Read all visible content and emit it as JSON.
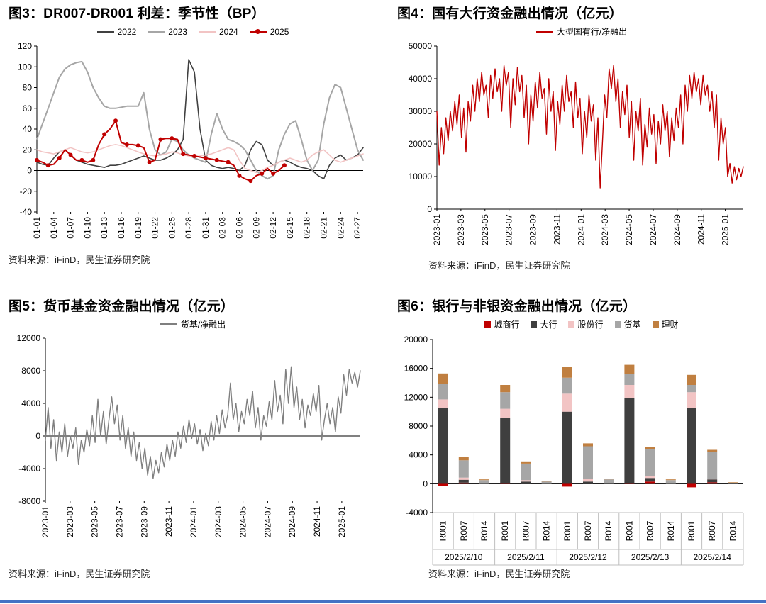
{
  "page": {
    "footer_rule_color": "#4472C4"
  },
  "chart_data": [
    {
      "id": "fig3",
      "type": "line",
      "title": "图3：DR007-DR001 利差：季节性（BP）",
      "source": "资料来源：iFinD，民生证券研究院",
      "ylabel": "BP",
      "ylim": [
        -40,
        120
      ],
      "ystep": 20,
      "legend_position": "top",
      "grid": false,
      "x_tick_every": 3,
      "x_categories": [
        "01-01",
        "01-02",
        "01-03",
        "01-04",
        "01-05",
        "01-06",
        "01-07",
        "01-08",
        "01-09",
        "01-10",
        "01-11",
        "01-12",
        "01-13",
        "01-14",
        "01-15",
        "01-16",
        "01-17",
        "01-18",
        "01-19",
        "01-20",
        "01-21",
        "01-22",
        "01-23",
        "01-24",
        "01-25",
        "01-26",
        "01-27",
        "01-28",
        "01-29",
        "01-30",
        "01-31",
        "02-01",
        "02-02",
        "02-03",
        "02-04",
        "02-05",
        "02-06",
        "02-07",
        "02-08",
        "02-09",
        "02-10",
        "02-11",
        "02-12",
        "02-13",
        "02-14",
        "02-15",
        "02-16",
        "02-17",
        "02-18",
        "02-19",
        "02-20",
        "02-21",
        "02-22",
        "02-23",
        "02-24",
        "02-25",
        "02-26",
        "02-27",
        "02-28"
      ],
      "series": [
        {
          "name": "2022",
          "color": "#404040",
          "width": 1.6,
          "values": [
            8,
            6,
            5,
            12,
            18,
            20,
            15,
            10,
            8,
            6,
            5,
            4,
            3,
            5,
            5,
            6,
            8,
            10,
            12,
            14,
            12,
            10,
            10,
            12,
            15,
            20,
            30,
            107,
            95,
            40,
            10,
            5,
            3,
            2,
            3,
            2,
            0,
            5,
            20,
            28,
            25,
            10,
            5,
            8,
            10,
            8,
            5,
            3,
            2,
            0,
            -5,
            -8,
            5,
            12,
            15,
            10,
            12,
            15,
            22
          ]
        },
        {
          "name": "2023",
          "color": "#A6A6A6",
          "width": 2,
          "values": [
            30,
            45,
            60,
            75,
            90,
            98,
            102,
            104,
            105,
            95,
            80,
            70,
            62,
            60,
            60,
            61,
            62,
            62,
            62,
            75,
            40,
            20,
            15,
            18,
            30,
            28,
            20,
            15,
            12,
            10,
            8,
            35,
            55,
            40,
            30,
            28,
            25,
            20,
            10,
            0,
            -5,
            -8,
            -5,
            20,
            35,
            45,
            48,
            30,
            10,
            0,
            10,
            45,
            70,
            83,
            80,
            60,
            40,
            20,
            10
          ]
        },
        {
          "name": "2024",
          "color": "#F2C4C4",
          "width": 1.6,
          "values": [
            20,
            18,
            17,
            16,
            18,
            20,
            22,
            20,
            18,
            17,
            18,
            20,
            22,
            24,
            25,
            24,
            22,
            20,
            18,
            16,
            15,
            14,
            15,
            16,
            18,
            17,
            15,
            14,
            13,
            14,
            15,
            16,
            18,
            20,
            22,
            20,
            10,
            2,
            0,
            -2,
            0,
            3,
            5,
            8,
            10,
            12,
            10,
            8,
            10,
            15,
            18,
            20,
            15,
            10,
            8,
            10,
            12,
            14,
            16
          ]
        },
        {
          "name": "2025",
          "color": "#C00000",
          "width": 2,
          "marker": true,
          "marker_every": 2,
          "values": [
            10,
            8,
            5,
            6,
            12,
            20,
            15,
            10,
            10,
            8,
            10,
            25,
            35,
            40,
            48,
            27,
            25,
            25,
            24,
            22,
            8,
            10,
            30,
            31,
            31,
            30,
            16,
            15,
            14,
            13,
            12,
            11,
            10,
            9,
            8,
            5,
            -5,
            -8,
            -10,
            -5,
            -3,
            2,
            -3,
            0,
            5
          ]
        }
      ]
    },
    {
      "id": "fig4",
      "type": "line",
      "title": "图4：国有大行资金融出情况（亿元）",
      "source": "资料来源：iFinD，民生证券研究院",
      "ylabel": "亿元",
      "ylim": [
        0,
        50000
      ],
      "ystep": 10000,
      "legend_position": "top",
      "grid": false,
      "x_ticks": [
        "2023-01",
        "2023-03",
        "2023-05",
        "2023-07",
        "2023-09",
        "2023-11",
        "2024-01",
        "2024-03",
        "2024-05",
        "2024-07",
        "2024-09",
        "2024-11",
        "2025-01"
      ],
      "x_tick_month_step": 2,
      "x_total_months": 25.5,
      "series": [
        {
          "name": "大型国有行/净融出",
          "color": "#C00000",
          "width": 1.4,
          "values": [
            30000,
            13500,
            25000,
            17000,
            28000,
            21000,
            30000,
            24000,
            33000,
            26000,
            35000,
            22000,
            31000,
            17500,
            33000,
            27000,
            38000,
            30000,
            40000,
            33000,
            42000,
            35000,
            38000,
            28000,
            41000,
            34000,
            43000,
            36000,
            40000,
            30000,
            44000,
            38000,
            42000,
            25000,
            40000,
            32000,
            43500,
            36000,
            41000,
            28000,
            38000,
            20000,
            35000,
            27000,
            39000,
            31000,
            42000,
            34000,
            37000,
            23000,
            40000,
            30000,
            36000,
            18000,
            33000,
            26000,
            38000,
            30000,
            41000,
            33000,
            36000,
            25000,
            39000,
            28000,
            34000,
            17000,
            30000,
            22000,
            35000,
            27000,
            32000,
            15000,
            28000,
            6500,
            20000,
            35000,
            28000,
            43000,
            37000,
            44000,
            33000,
            40000,
            25000,
            36000,
            29000,
            38000,
            22000,
            33000,
            15000,
            30000,
            24000,
            34000,
            13500,
            26000,
            19000,
            31000,
            23000,
            29000,
            14000,
            27000,
            20000,
            32000,
            24000,
            30000,
            16000,
            28000,
            21000,
            31000,
            25000,
            35000,
            20000,
            38000,
            30000,
            41000,
            34000,
            42000,
            36000,
            40000,
            32000,
            41000,
            35000,
            38000,
            30000,
            36000,
            25000,
            35000,
            15000,
            28000,
            20000,
            25000,
            10000,
            14000,
            8000,
            13000,
            9000,
            12500,
            10000,
            13000
          ]
        }
      ]
    },
    {
      "id": "fig5",
      "type": "line",
      "title": "图5：货币基金资金融出情况（亿元）",
      "source": "资料来源：iFinD，民生证券研究院",
      "ylabel": "亿元",
      "ylim": [
        -8000,
        12000
      ],
      "ystep": 4000,
      "legend_position": "top",
      "grid": false,
      "x_ticks": [
        "2023-01",
        "2023-03",
        "2023-05",
        "2023-07",
        "2023-09",
        "2023-11",
        "2024-01",
        "2024-03",
        "2024-05",
        "2024-07",
        "2024-09",
        "2024-11",
        "2025-01"
      ],
      "x_tick_month_step": 2,
      "x_total_months": 25.5,
      "series": [
        {
          "name": "货基/净融出",
          "color": "#7F7F7F",
          "width": 1.4,
          "values": [
            -500,
            3500,
            -1500,
            2000,
            -3000,
            500,
            -2000,
            1500,
            -2500,
            0,
            -1500,
            1000,
            -3500,
            -500,
            -2000,
            800,
            -1200,
            2500,
            -800,
            4500,
            0,
            3000,
            -1000,
            2000,
            4800,
            1500,
            3800,
            -500,
            2500,
            -1500,
            1000,
            -2500,
            500,
            -3000,
            -800,
            -4000,
            -1500,
            -4800,
            -2500,
            -5200,
            -3000,
            -4500,
            -2000,
            -3800,
            -1000,
            -3000,
            -500,
            -2500,
            500,
            -1500,
            1200,
            -800,
            2000,
            -300,
            1500,
            -1000,
            800,
            -1800,
            300,
            -1200,
            1800,
            -500,
            2500,
            300,
            3200,
            1000,
            2600,
            6500,
            2000,
            4000,
            500,
            3000,
            1500,
            4500,
            2500,
            5500,
            1000,
            3500,
            -500,
            2500,
            1200,
            4200,
            2000,
            6800,
            3000,
            5000,
            1500,
            8200,
            4000,
            8500,
            3500,
            6000,
            2000,
            4500,
            1000,
            3800,
            2500,
            5200,
            3000,
            6200,
            -500,
            2000,
            4000,
            1500,
            3500,
            500,
            4800,
            2800,
            7500,
            5000,
            8200,
            6500,
            7800,
            6000,
            8000
          ]
        }
      ]
    },
    {
      "id": "fig6",
      "type": "stacked_bar",
      "title": "图6：银行与非银资金融出情况（亿元）",
      "source": "资料来源：iFinD，民生证券研究院",
      "ylabel": "亿元",
      "ylim": [
        -4000,
        20000
      ],
      "ystep": 4000,
      "legend_position": "top",
      "grid": false,
      "groups": [
        "2025/2/10",
        "2025/2/11",
        "2025/2/12",
        "2025/2/13",
        "2025/2/14"
      ],
      "tenors": [
        "R001",
        "R007",
        "R014"
      ],
      "series": [
        {
          "name": "城商行",
          "color": "#C00000",
          "values": [
            -300,
            150,
            0,
            100,
            0,
            0,
            -400,
            0,
            0,
            100,
            300,
            0,
            -500,
            200,
            0
          ]
        },
        {
          "name": "大行",
          "color": "#3F3F3F",
          "values": [
            10500,
            400,
            0,
            9000,
            300,
            0,
            10000,
            300,
            0,
            11800,
            500,
            0,
            10500,
            400,
            0
          ]
        },
        {
          "name": "股份行",
          "color": "#F2C4C4",
          "values": [
            1200,
            300,
            0,
            1300,
            200,
            0,
            2500,
            400,
            0,
            1800,
            300,
            0,
            2200,
            100,
            0
          ]
        },
        {
          "name": "货基",
          "color": "#A6A6A6",
          "values": [
            2200,
            2400,
            500,
            2300,
            2300,
            300,
            2200,
            4500,
            600,
            1500,
            3700,
            500,
            1000,
            3700,
            150
          ]
        },
        {
          "name": "理财",
          "color": "#C07F40",
          "values": [
            1400,
            450,
            100,
            1000,
            300,
            100,
            1500,
            400,
            100,
            1300,
            300,
            100,
            1400,
            300,
            50
          ]
        }
      ]
    }
  ]
}
